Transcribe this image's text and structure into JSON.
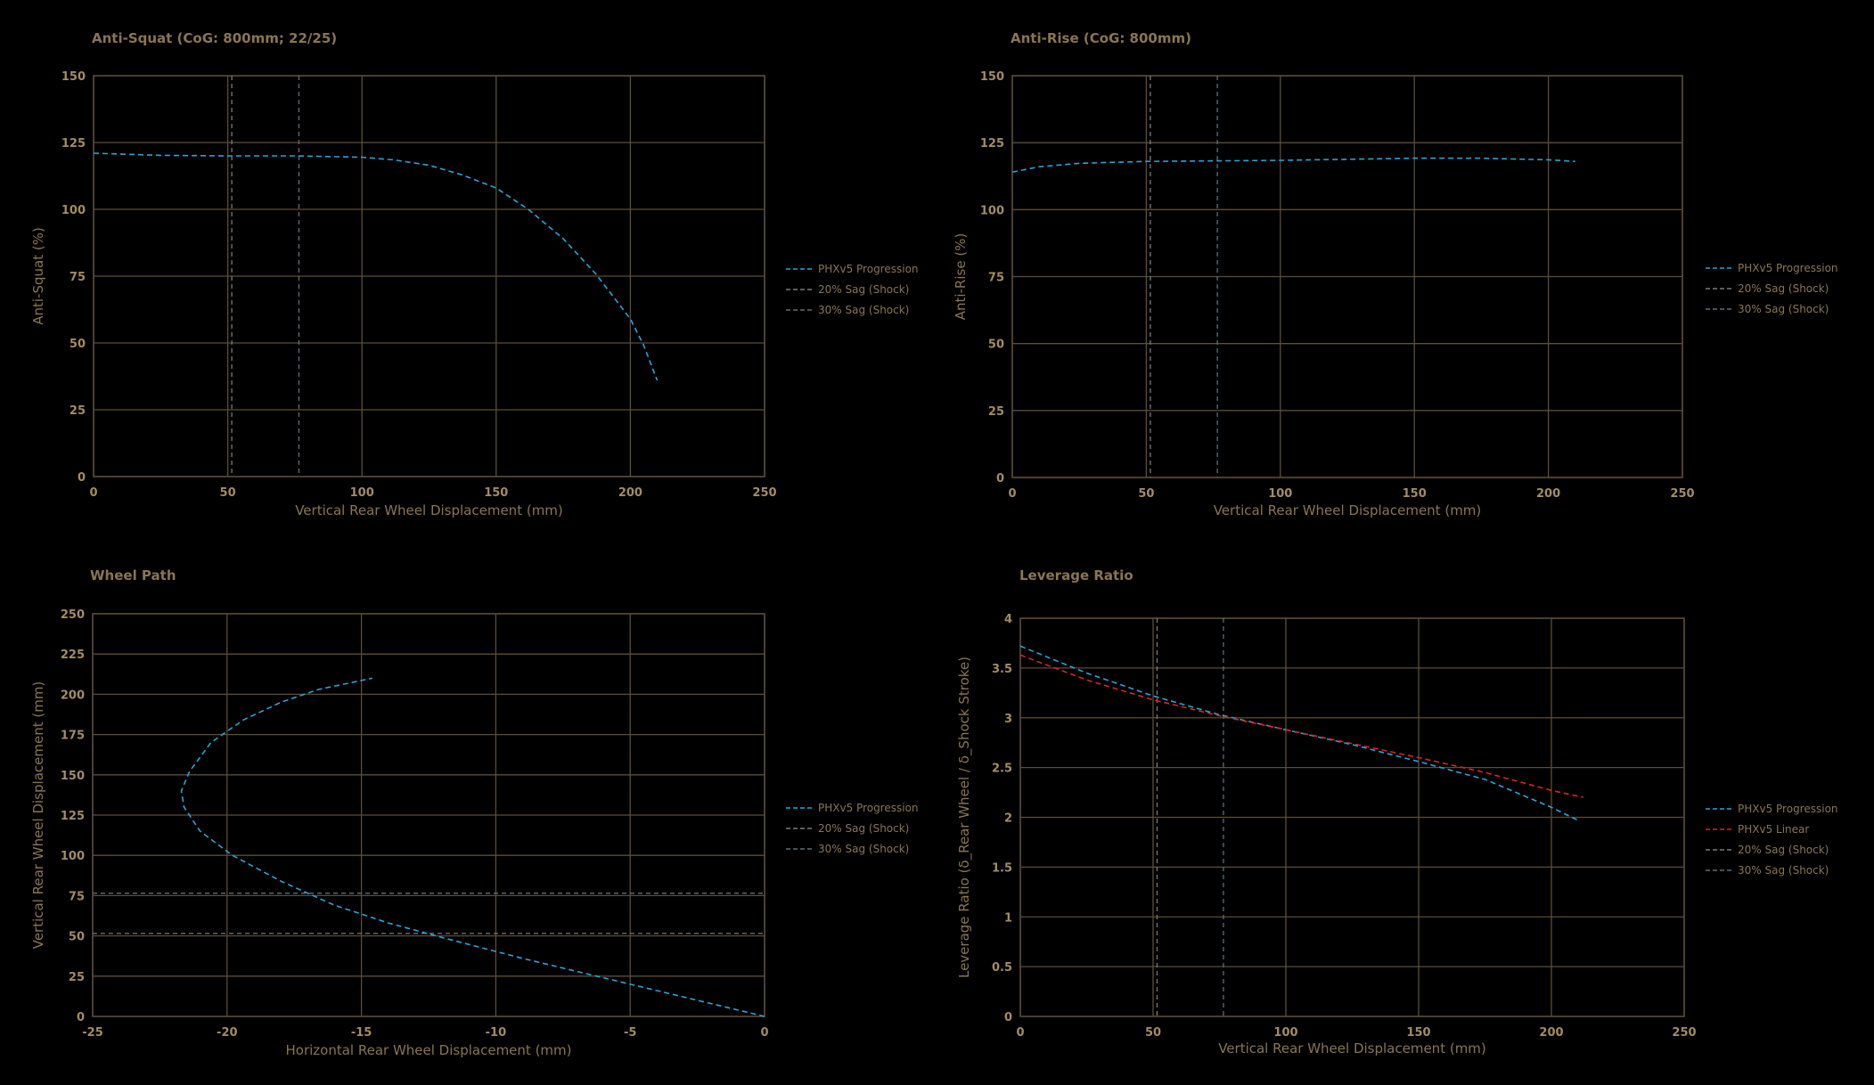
{
  "colors": {
    "background": "#000000",
    "grid": "#5c4d37",
    "text": "#8a7552",
    "tick": "#a38c62",
    "progression": "#2ba3d6",
    "linear": "#d62626",
    "sag20": "#7a7a7a",
    "sag30": "#5e6e78"
  },
  "chart_data": [
    {
      "id": "anti-squat",
      "type": "line",
      "title": "Anti-Squat (CoG: 800mm; 22/25)",
      "xlabel": "Vertical Rear Wheel Displacement (mm)",
      "ylabel": "Anti-Squat (%)",
      "xlim": [
        0,
        250
      ],
      "ylim": [
        0,
        150
      ],
      "xticks": [
        0,
        50,
        100,
        150,
        200,
        250
      ],
      "xtick_labels": [
        "0",
        "50",
        "100",
        "150",
        "200",
        "250"
      ],
      "yticks": [
        0,
        25,
        50,
        75,
        100,
        125,
        150
      ],
      "ytick_labels": [
        "0",
        "25",
        "50",
        "75",
        "100",
        "125",
        "150"
      ],
      "grid": true,
      "legend_position": "right",
      "series": [
        {
          "name": "PHXv5 Progression",
          "color": "#2ba3d6",
          "style": "dashed",
          "x": [
            0,
            25,
            50,
            75,
            100,
            112,
            125,
            137,
            150,
            162,
            175,
            187,
            200,
            205,
            210
          ],
          "y": [
            121,
            120.2,
            120,
            120,
            119.5,
            118.5,
            116.5,
            113,
            108,
            100,
            89,
            76,
            59,
            49,
            36
          ]
        }
      ],
      "vlines": [
        {
          "name": "20% Sag (Shock)",
          "value": 51.5,
          "color": "#7a7a7a"
        },
        {
          "name": "30% Sag (Shock)",
          "value": 76.5,
          "color": "#5e6e78"
        }
      ],
      "hlines": []
    },
    {
      "id": "anti-rise",
      "type": "line",
      "title": "Anti-Rise (CoG: 800mm)",
      "xlabel": "Vertical Rear Wheel Displacement (mm)",
      "ylabel": "Anti-Rise (%)",
      "xlim": [
        0,
        250
      ],
      "ylim": [
        0,
        150
      ],
      "xticks": [
        0,
        50,
        100,
        150,
        200,
        250
      ],
      "xtick_labels": [
        "0",
        "50",
        "100",
        "150",
        "200",
        "250"
      ],
      "yticks": [
        0,
        25,
        50,
        75,
        100,
        125,
        150
      ],
      "ytick_labels": [
        "0",
        "25",
        "50",
        "75",
        "100",
        "125",
        "150"
      ],
      "grid": true,
      "legend_position": "right",
      "series": [
        {
          "name": "PHXv5 Progression",
          "color": "#2ba3d6",
          "style": "dashed",
          "x": [
            0,
            10,
            25,
            50,
            75,
            100,
            125,
            150,
            175,
            200,
            210
          ],
          "y": [
            114,
            116,
            117.3,
            118,
            118.2,
            118.4,
            118.8,
            119.2,
            119.2,
            118.6,
            118
          ]
        }
      ],
      "vlines": [
        {
          "name": "20% Sag (Shock)",
          "value": 51.5,
          "color": "#7a7a7a"
        },
        {
          "name": "30% Sag (Shock)",
          "value": 76.5,
          "color": "#5e6e78"
        }
      ],
      "hlines": []
    },
    {
      "id": "wheel-path",
      "type": "line",
      "title": "Wheel Path",
      "xlabel": "Horizontal Rear Wheel Displacement (mm)",
      "ylabel": "Vertical Rear Wheel Displacement (mm)",
      "xlim": [
        -25,
        0
      ],
      "ylim": [
        0,
        250
      ],
      "xticks": [
        -25,
        -20,
        -15,
        -10,
        -5,
        0
      ],
      "xtick_labels": [
        "-25",
        "-20",
        "-15",
        "-10",
        "-5",
        "0"
      ],
      "yticks": [
        0,
        25,
        50,
        75,
        100,
        125,
        150,
        175,
        200,
        225,
        250
      ],
      "ytick_labels": [
        "0",
        "25",
        "50",
        "75",
        "100",
        "125",
        "150",
        "175",
        "200",
        "225",
        "250"
      ],
      "grid": true,
      "legend_position": "right",
      "series": [
        {
          "name": "PHXv5 Progression",
          "color": "#2ba3d6",
          "style": "dashed",
          "x": [
            0,
            -3,
            -6,
            -9,
            -12,
            -14,
            -16,
            -18,
            -19.8,
            -21,
            -21.6,
            -21.7,
            -21.4,
            -20.6,
            -19.4,
            -18,
            -16.6,
            -14.6
          ],
          "y": [
            0,
            12,
            24,
            36,
            49,
            58,
            69,
            84,
            100,
            115,
            130,
            140,
            152,
            170,
            184,
            195,
            203,
            210
          ]
        }
      ],
      "vlines": [],
      "hlines": [
        {
          "name": "20% Sag (Shock)",
          "value": 51.5,
          "color": "#7a7a7a"
        },
        {
          "name": "30% Sag (Shock)",
          "value": 76.5,
          "color": "#5e6e78"
        }
      ]
    },
    {
      "id": "leverage-ratio",
      "type": "line",
      "title": "Leverage Ratio",
      "xlabel": "Vertical Rear Wheel Displacement (mm)",
      "ylabel": "Leverage Ratio (δ_Rear Wheel / δ_Shock Stroke)",
      "xlim": [
        0,
        250
      ],
      "ylim": [
        0,
        4
      ],
      "xticks": [
        0,
        50,
        100,
        150,
        200,
        250
      ],
      "xtick_labels": [
        "0",
        "50",
        "100",
        "150",
        "200",
        "250"
      ],
      "yticks": [
        0,
        0.5,
        1,
        1.5,
        2,
        2.5,
        3,
        3.5,
        4
      ],
      "ytick_labels": [
        "0",
        "0.5",
        "1",
        "1.5",
        "2",
        "2.5",
        "3",
        "3.5",
        "4"
      ],
      "grid": true,
      "legend_position": "right",
      "series": [
        {
          "name": "PHXv5 Progression",
          "color": "#2ba3d6",
          "style": "dashed",
          "x": [
            0,
            25,
            50,
            75,
            100,
            125,
            150,
            175,
            200,
            210
          ],
          "y": [
            3.72,
            3.45,
            3.22,
            3.03,
            2.88,
            2.73,
            2.56,
            2.38,
            2.1,
            1.97
          ]
        },
        {
          "name": "PHXv5 Linear",
          "color": "#d62626",
          "style": "dashed",
          "x": [
            0,
            25,
            50,
            75,
            100,
            125,
            150,
            175,
            200,
            212
          ],
          "y": [
            3.63,
            3.38,
            3.18,
            3.02,
            2.88,
            2.74,
            2.6,
            2.45,
            2.27,
            2.2
          ]
        }
      ],
      "vlines": [
        {
          "name": "20% Sag (Shock)",
          "value": 51.5,
          "color": "#7a7a7a"
        },
        {
          "name": "30% Sag (Shock)",
          "value": 76.5,
          "color": "#5e6e78"
        }
      ],
      "hlines": []
    }
  ]
}
